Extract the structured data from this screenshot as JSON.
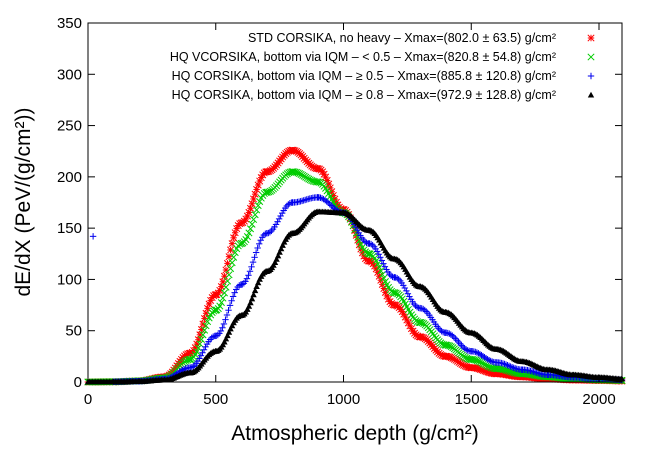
{
  "chart_data": {
    "type": "scatter",
    "xlabel": "Atmospheric depth (g/cm²)",
    "ylabel": "dE/dX (PeV/(g/cm²))",
    "xlim": [
      0,
      2090
    ],
    "ylim": [
      0,
      350
    ],
    "xticks": [
      0,
      500,
      1000,
      1500,
      2000
    ],
    "yticks": [
      0,
      50,
      100,
      150,
      200,
      250,
      300,
      350
    ],
    "grid": false,
    "legend_position": "top-right",
    "series": [
      {
        "name": "STD CORSIKA, no heavy – Xmax=(802.0 ± 63.5) g/cm²",
        "color": "#ff0000",
        "marker": "asterisk",
        "x": [
          0,
          100,
          200,
          300,
          400,
          500,
          600,
          700,
          800,
          900,
          1000,
          1100,
          1200,
          1300,
          1400,
          1500,
          1600,
          1700,
          1800,
          1900,
          2000,
          2090
        ],
        "y": [
          0,
          0.2,
          1,
          5,
          28,
          85,
          155,
          205,
          226,
          208,
          168,
          118,
          75,
          44,
          25,
          14,
          8,
          5,
          3,
          2,
          1.5,
          1
        ]
      },
      {
        "name": "HQ VCORSIKA, bottom via IQM – < 0.5 – Xmax=(820.8 ± 54.8) g/cm²",
        "color": "#00cc00",
        "marker": "cross",
        "x": [
          0,
          100,
          200,
          300,
          400,
          500,
          600,
          700,
          800,
          900,
          1000,
          1100,
          1200,
          1300,
          1400,
          1500,
          1600,
          1700,
          1800,
          1900,
          2000,
          2090
        ],
        "y": [
          0,
          0.2,
          1,
          4,
          22,
          70,
          135,
          185,
          205,
          195,
          165,
          125,
          87,
          58,
          36,
          22,
          13,
          8,
          5,
          3,
          2,
          1.5
        ]
      },
      {
        "name": "HQ CORSIKA, bottom via IQM – ≥ 0.5 – Xmax=(885.8 ± 120.8) g/cm²",
        "color": "#0000ee",
        "marker": "plus",
        "x": [
          20,
          100,
          200,
          300,
          400,
          500,
          600,
          700,
          800,
          900,
          1000,
          1100,
          1200,
          1300,
          1400,
          1500,
          1600,
          1700,
          1800,
          1900,
          2000,
          2090
        ],
        "y": [
          142,
          0.2,
          0.8,
          3,
          14,
          45,
          95,
          145,
          175,
          180,
          165,
          135,
          102,
          72,
          48,
          30,
          19,
          12,
          7,
          4.5,
          3,
          2
        ]
      },
      {
        "name": "HQ CORSIKA, bottom via IQM – ≥ 0.8 – Xmax=(972.9 ± 128.8) g/cm²",
        "color": "#000000",
        "marker": "triangle",
        "x": [
          0,
          100,
          200,
          300,
          400,
          500,
          600,
          700,
          800,
          900,
          1000,
          1100,
          1200,
          1300,
          1400,
          1500,
          1600,
          1700,
          1800,
          1900,
          2000,
          2090
        ],
        "y": [
          0,
          0.1,
          0.6,
          2,
          9,
          30,
          65,
          108,
          145,
          166,
          165,
          148,
          120,
          93,
          68,
          48,
          32,
          20,
          12,
          7,
          4.5,
          3
        ]
      }
    ]
  }
}
